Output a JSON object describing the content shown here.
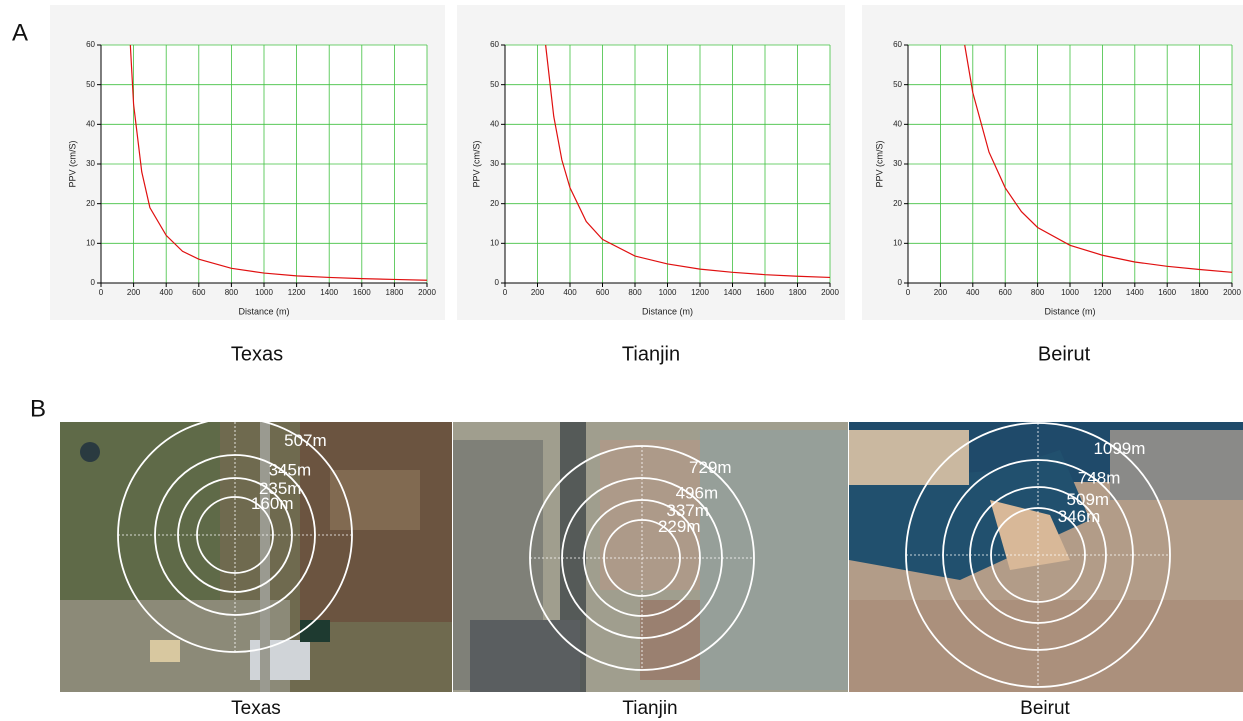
{
  "figure": {
    "panel_a": "A",
    "panel_b": "B"
  },
  "chart_data": [
    {
      "type": "line",
      "caption": "Texas",
      "x_label": "Distance (m)",
      "y_label": "PPV (cm/S)",
      "x": [
        180,
        200,
        250,
        300,
        400,
        500,
        600,
        800,
        1000,
        1200,
        1400,
        1600,
        1800,
        2000
      ],
      "series": [
        {
          "color": "#e01010",
          "values": [
            60,
            45,
            28,
            19,
            12,
            8,
            6,
            3.7,
            2.5,
            1.8,
            1.4,
            1.1,
            0.9,
            0.7
          ]
        }
      ],
      "xlim": [
        0,
        2000
      ],
      "ylim": [
        0,
        60
      ],
      "xticks": [
        0,
        200,
        400,
        600,
        800,
        1000,
        1200,
        1400,
        1600,
        1800,
        2000
      ],
      "yticks": [
        0,
        10,
        20,
        30,
        40,
        50,
        60
      ],
      "grid": true,
      "grid_color": "#40c040"
    },
    {
      "type": "line",
      "caption": "Tianjin",
      "x_label": "Distance (m)",
      "y_label": "PPV (cm/S)",
      "x": [
        250,
        300,
        350,
        400,
        500,
        600,
        800,
        1000,
        1200,
        1400,
        1600,
        1800,
        2000
      ],
      "series": [
        {
          "color": "#e01010",
          "values": [
            60,
            42,
            31,
            24,
            15.5,
            11,
            6.8,
            4.8,
            3.5,
            2.7,
            2.1,
            1.7,
            1.4
          ]
        }
      ],
      "xlim": [
        0,
        2000
      ],
      "ylim": [
        0,
        60
      ],
      "xticks": [
        0,
        200,
        400,
        600,
        800,
        1000,
        1200,
        1400,
        1600,
        1800,
        2000
      ],
      "yticks": [
        0,
        10,
        20,
        30,
        40,
        50,
        60
      ],
      "grid": true,
      "grid_color": "#40c040"
    },
    {
      "type": "line",
      "caption": "Beirut",
      "x_label": "Distance (m)",
      "y_label": "PPV (cm/S)",
      "x": [
        350,
        400,
        500,
        600,
        700,
        800,
        1000,
        1200,
        1400,
        1600,
        1800,
        2000
      ],
      "series": [
        {
          "color": "#e01010",
          "values": [
            60,
            48,
            33,
            24,
            18,
            14,
            9.5,
            7,
            5.3,
            4.2,
            3.4,
            2.7
          ]
        }
      ],
      "xlim": [
        0,
        2000
      ],
      "ylim": [
        0,
        60
      ],
      "xticks": [
        0,
        200,
        400,
        600,
        800,
        1000,
        1200,
        1400,
        1600,
        1800,
        2000
      ],
      "yticks": [
        0,
        10,
        20,
        30,
        40,
        50,
        60
      ],
      "grid": true,
      "grid_color": "#40c040"
    }
  ],
  "maps": [
    {
      "caption": "Texas",
      "rings": [
        "507m",
        "345m",
        "235m",
        "160m"
      ]
    },
    {
      "caption": "Tianjin",
      "rings": [
        "729m",
        "496m",
        "337m",
        "229m"
      ]
    },
    {
      "caption": "Beirut",
      "rings": [
        "1099m",
        "748m",
        "509m",
        "346m"
      ]
    }
  ]
}
